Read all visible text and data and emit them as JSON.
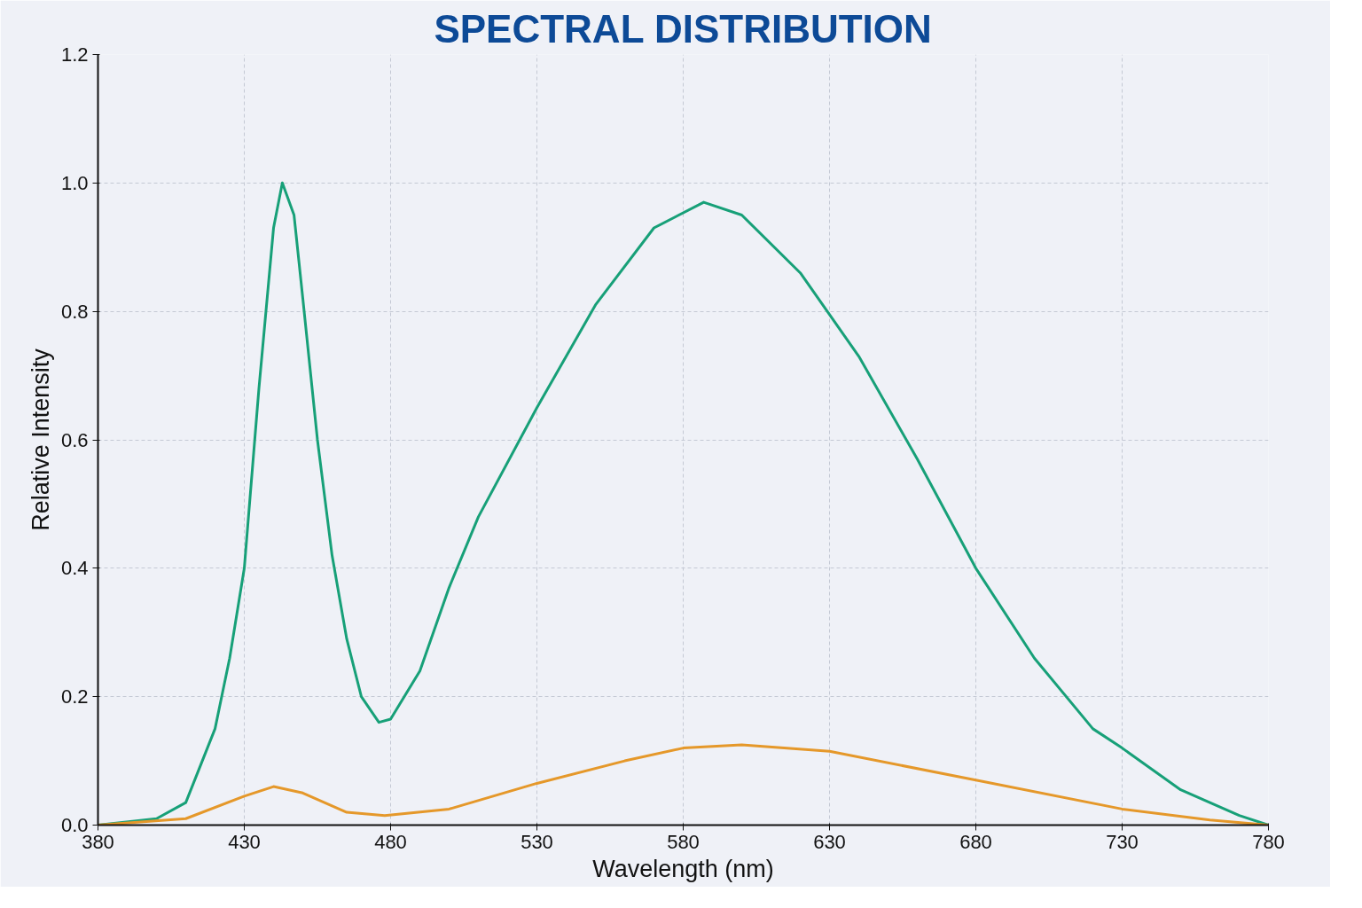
{
  "chart_data": {
    "type": "line",
    "title": "SPECTRAL DISTRIBUTION",
    "xlabel": "Wavelength (nm)",
    "ylabel": "Relative Intensity",
    "xlim": [
      380,
      780
    ],
    "xticks": [
      380,
      430,
      480,
      530,
      580,
      630,
      680,
      730,
      780
    ],
    "ylim": [
      0,
      1.2
    ],
    "yticks": [
      {
        "value": 0,
        "label": "0.0"
      },
      {
        "value": 0.2,
        "label": "0.2"
      },
      {
        "value": 0.4,
        "label": "0.4"
      },
      {
        "value": 0.6,
        "label": "0.6"
      },
      {
        "value": 0.8,
        "label": "0.8"
      },
      {
        "value": 1.0,
        "label": "1.0"
      },
      {
        "value": 1.2,
        "label": "1.2"
      }
    ],
    "grid": true,
    "marker": "none",
    "line_style": "solid",
    "series": [
      {
        "color": "#17a078",
        "x": [
          380,
          400,
          410,
          420,
          425,
          430,
          435,
          440,
          443,
          447,
          450,
          455,
          460,
          465,
          470,
          476,
          480,
          490,
          500,
          510,
          530,
          550,
          570,
          587,
          600,
          620,
          640,
          660,
          680,
          700,
          720,
          730,
          750,
          770,
          780
        ],
        "values": [
          0,
          0.01,
          0.035,
          0.15,
          0.26,
          0.4,
          0.68,
          0.93,
          1.0,
          0.95,
          0.82,
          0.6,
          0.42,
          0.29,
          0.2,
          0.16,
          0.165,
          0.24,
          0.37,
          0.48,
          0.65,
          0.81,
          0.93,
          0.97,
          0.95,
          0.86,
          0.73,
          0.57,
          0.4,
          0.26,
          0.15,
          0.12,
          0.055,
          0.015,
          0
        ]
      },
      {
        "color": "#e5982a",
        "x": [
          380,
          410,
          430,
          440,
          450,
          465,
          478,
          500,
          530,
          560,
          580,
          600,
          630,
          680,
          730,
          760,
          780
        ],
        "values": [
          0,
          0.01,
          0.045,
          0.06,
          0.05,
          0.02,
          0.015,
          0.025,
          0.065,
          0.1,
          0.12,
          0.125,
          0.115,
          0.07,
          0.025,
          0.008,
          0
        ]
      }
    ]
  }
}
